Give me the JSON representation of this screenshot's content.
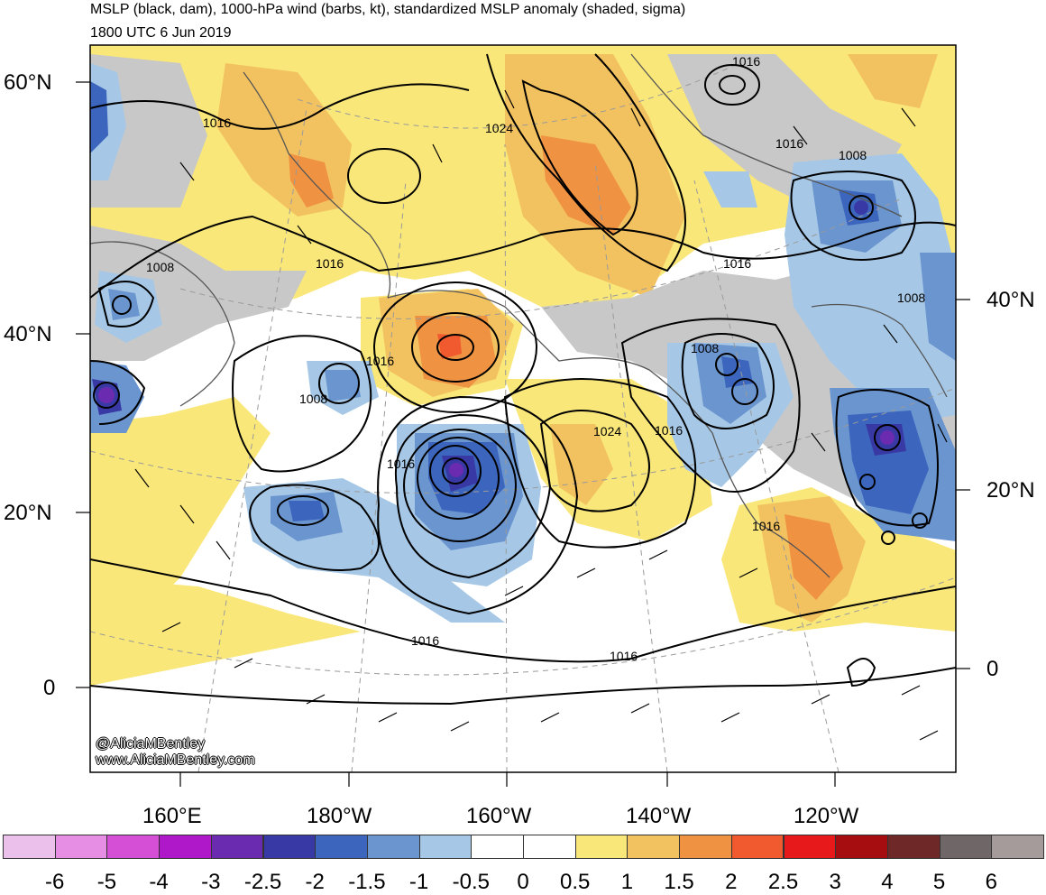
{
  "header": {
    "title": "MSLP (black, dam), 1000-hPa wind (barbs, kt), standardized MSLP anomaly (shaded, sigma)",
    "valid_time": "1800 UTC 6 Jun 2019"
  },
  "map": {
    "region": "North Pacific",
    "lat_labels_left": [
      "60°N",
      "40°N",
      "20°N",
      "0"
    ],
    "lat_labels_right": [
      "40°N",
      "20°N",
      "0"
    ],
    "lon_labels_bottom": [
      "160°E",
      "180°W",
      "160°W",
      "140°W",
      "120°W"
    ],
    "isobar_labels": [
      "1016",
      "1024",
      "1016",
      "1008",
      "1016",
      "1016",
      "1016",
      "1008",
      "1008",
      "1016",
      "1008",
      "1008",
      "1016",
      "1016",
      "1024",
      "1016",
      "1016",
      "1016",
      "1016"
    ],
    "credit_line1": "@AliciaMBentley",
    "credit_line2": "www.AliciaMBentley.com"
  },
  "colorbar": {
    "labels": [
      "-6",
      "-5",
      "-4",
      "-3",
      "-2.5",
      "-2",
      "-1.5",
      "-1",
      "-0.5",
      "0",
      "0.5",
      "1",
      "1.5",
      "2",
      "2.5",
      "3",
      "4",
      "5",
      "6"
    ],
    "colors": [
      "#ebc0ea",
      "#e58ee3",
      "#d44fd6",
      "#ae18c9",
      "#6a2bb0",
      "#3939a5",
      "#3c66bd",
      "#6a95cf",
      "#a6c8e6",
      "#ffffff",
      "#ffffff",
      "#f9e77a",
      "#f3c260",
      "#ef9242",
      "#f05a2e",
      "#e7191b",
      "#a50d10",
      "#6e2828",
      "#6f6767",
      "#a59b9b"
    ]
  }
}
